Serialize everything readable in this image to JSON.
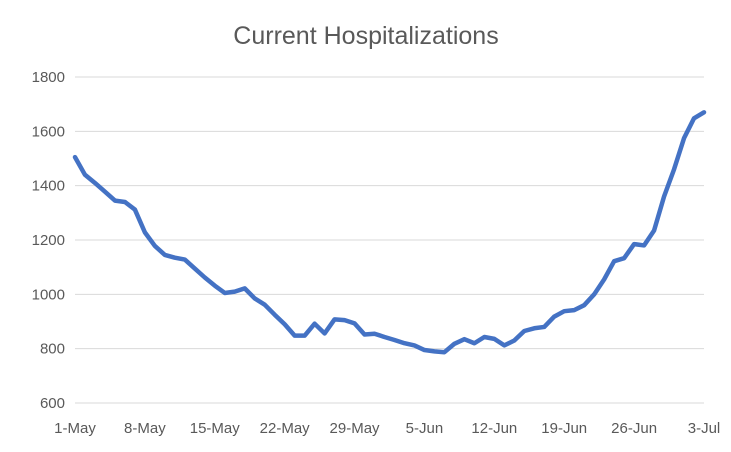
{
  "chart_data": {
    "type": "line",
    "title": "Current Hospitalizations",
    "xlabel": "",
    "ylabel": "",
    "ylim": [
      600,
      1800
    ],
    "yticks": [
      600,
      800,
      1000,
      1200,
      1400,
      1600,
      1800
    ],
    "xticks": [
      "1-May",
      "8-May",
      "15-May",
      "22-May",
      "29-May",
      "5-Jun",
      "12-Jun",
      "19-Jun",
      "26-Jun",
      "3-Jul"
    ],
    "grid": true,
    "legend": "none",
    "line_color": "#4472c4",
    "x": [
      "1-May",
      "2-May",
      "3-May",
      "4-May",
      "5-May",
      "6-May",
      "7-May",
      "8-May",
      "9-May",
      "10-May",
      "11-May",
      "12-May",
      "13-May",
      "14-May",
      "15-May",
      "16-May",
      "17-May",
      "18-May",
      "19-May",
      "20-May",
      "21-May",
      "22-May",
      "23-May",
      "24-May",
      "25-May",
      "26-May",
      "27-May",
      "28-May",
      "29-May",
      "30-May",
      "31-May",
      "1-Jun",
      "2-Jun",
      "3-Jun",
      "4-Jun",
      "5-Jun",
      "6-Jun",
      "7-Jun",
      "8-Jun",
      "9-Jun",
      "10-Jun",
      "11-Jun",
      "12-Jun",
      "13-Jun",
      "14-Jun",
      "15-Jun",
      "16-Jun",
      "17-Jun",
      "18-Jun",
      "19-Jun",
      "20-Jun",
      "21-Jun",
      "22-Jun",
      "23-Jun",
      "24-Jun",
      "25-Jun",
      "26-Jun",
      "27-Jun",
      "28-Jun",
      "29-Jun",
      "30-Jun",
      "1-Jul",
      "2-Jul",
      "3-Jul"
    ],
    "series": [
      {
        "values": [
          1505,
          1440,
          1410,
          1378,
          1345,
          1340,
          1312,
          1228,
          1178,
          1145,
          1135,
          1128,
          1095,
          1062,
          1032,
          1005,
          1010,
          1022,
          985,
          962,
          925,
          890,
          848,
          848,
          892,
          856,
          908,
          905,
          893,
          852,
          855,
          843,
          832,
          820,
          812,
          795,
          790,
          787,
          818,
          835,
          820,
          843,
          836,
          812,
          830,
          865,
          875,
          880,
          918,
          938,
          942,
          960,
          1000,
          1055,
          1122,
          1133,
          1185,
          1180,
          1235,
          1360,
          1460,
          1575,
          1648,
          1670
        ]
      }
    ]
  }
}
